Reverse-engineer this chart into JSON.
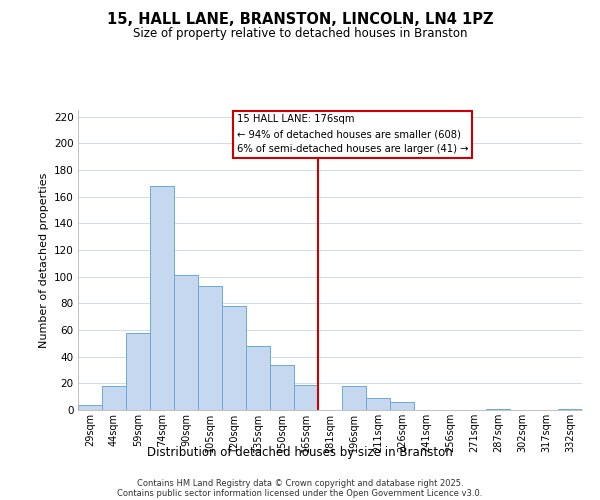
{
  "title": "15, HALL LANE, BRANSTON, LINCOLN, LN4 1PZ",
  "subtitle": "Size of property relative to detached houses in Branston",
  "xlabel": "Distribution of detached houses by size in Branston",
  "ylabel": "Number of detached properties",
  "categories": [
    "29sqm",
    "44sqm",
    "59sqm",
    "74sqm",
    "90sqm",
    "105sqm",
    "120sqm",
    "135sqm",
    "150sqm",
    "165sqm",
    "181sqm",
    "196sqm",
    "211sqm",
    "226sqm",
    "241sqm",
    "256sqm",
    "271sqm",
    "287sqm",
    "302sqm",
    "317sqm",
    "332sqm"
  ],
  "values": [
    4,
    18,
    58,
    168,
    101,
    93,
    78,
    48,
    34,
    19,
    0,
    18,
    9,
    6,
    0,
    0,
    0,
    1,
    0,
    0,
    1
  ],
  "bar_color": "#c5d8ef",
  "bar_edge_color": "#6aaad4",
  "highlight_line_color": "#cc0000",
  "highlight_line_index": 10,
  "ylim": [
    0,
    225
  ],
  "yticks": [
    0,
    20,
    40,
    60,
    80,
    100,
    120,
    140,
    160,
    180,
    200,
    220
  ],
  "annotation_title": "15 HALL LANE: 176sqm",
  "annotation_line1": "← 94% of detached houses are smaller (608)",
  "annotation_line2": "6% of semi-detached houses are larger (41) →",
  "footer_line1": "Contains HM Land Registry data © Crown copyright and database right 2025.",
  "footer_line2": "Contains public sector information licensed under the Open Government Licence v3.0.",
  "background_color": "#ffffff",
  "grid_color": "#c8d8e8"
}
